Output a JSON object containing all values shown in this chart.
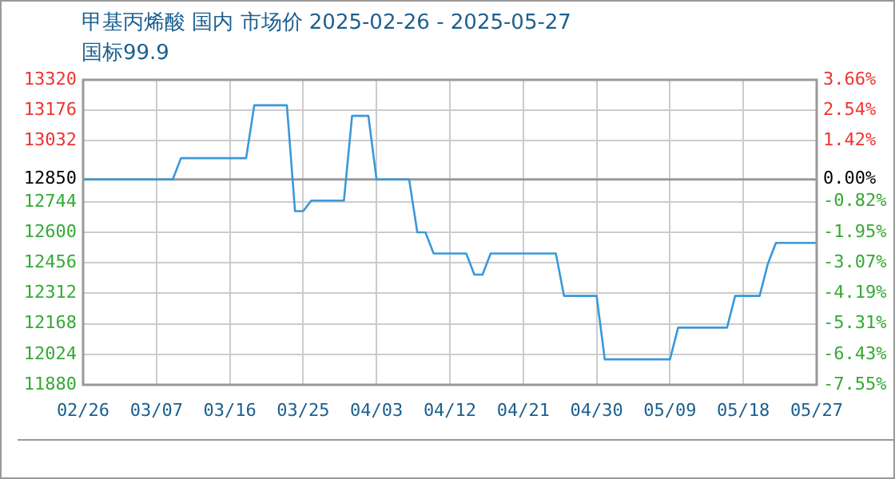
{
  "chart_data": {
    "type": "line",
    "title": "甲基丙烯酸 国内 市场价 2025-02-26 - 2025-05-27",
    "subtitle": "国标99.9",
    "series": [
      {
        "color": "#3a98d8",
        "x": [
          "2025-02-26",
          "2025-03-09",
          "2025-03-10",
          "2025-03-18",
          "2025-03-19",
          "2025-03-23",
          "2025-03-24",
          "2025-03-25",
          "2025-03-26",
          "2025-03-30",
          "2025-03-31",
          "2025-04-02",
          "2025-04-03",
          "2025-04-07",
          "2025-04-08",
          "2025-04-09",
          "2025-04-10",
          "2025-04-14",
          "2025-04-15",
          "2025-04-16",
          "2025-04-17",
          "2025-04-25",
          "2025-04-26",
          "2025-04-30",
          "2025-05-01",
          "2025-05-09",
          "2025-05-10",
          "2025-05-16",
          "2025-05-17",
          "2025-05-20",
          "2025-05-21",
          "2025-05-22",
          "2025-05-27"
        ],
        "values": [
          12850,
          12850,
          12950,
          12950,
          13200,
          13200,
          12700,
          12700,
          12750,
          12750,
          13150,
          13150,
          12850,
          12850,
          12600,
          12600,
          12500,
          12500,
          12400,
          12400,
          12500,
          12500,
          12300,
          12300,
          12000,
          12000,
          12150,
          12150,
          12300,
          12300,
          12450,
          12550,
          12550
        ]
      }
    ],
    "xlim": [
      "2025-02-26",
      "2025-05-27"
    ],
    "xticks": [
      {
        "value": "2025-02-26",
        "label": "02/26"
      },
      {
        "value": "2025-03-07",
        "label": "03/07"
      },
      {
        "value": "2025-03-16",
        "label": "03/16"
      },
      {
        "value": "2025-03-25",
        "label": "03/25"
      },
      {
        "value": "2025-04-03",
        "label": "04/03"
      },
      {
        "value": "2025-04-12",
        "label": "04/12"
      },
      {
        "value": "2025-04-21",
        "label": "04/21"
      },
      {
        "value": "2025-04-30",
        "label": "04/30"
      },
      {
        "value": "2025-05-09",
        "label": "05/09"
      },
      {
        "value": "2025-05-18",
        "label": "05/18"
      },
      {
        "value": "2025-05-27",
        "label": "05/27"
      }
    ],
    "ylim": [
      11880,
      13320
    ],
    "yticks": [
      11880,
      12024,
      12168,
      12312,
      12456,
      12600,
      12744,
      12850,
      13032,
      13176,
      13320
    ],
    "y2lim": [
      -7.55,
      3.66
    ],
    "y2ticks": [
      {
        "value": -7.55,
        "label": "-7.55%"
      },
      {
        "value": -6.43,
        "label": "-6.43%"
      },
      {
        "value": -5.31,
        "label": "-5.31%"
      },
      {
        "value": -4.19,
        "label": "-4.19%"
      },
      {
        "value": -3.07,
        "label": "-3.07%"
      },
      {
        "value": -1.95,
        "label": "-1.95%"
      },
      {
        "value": -0.82,
        "label": "-0.82%"
      },
      {
        "value": 0,
        "label": "0.00%"
      },
      {
        "value": 1.42,
        "label": "1.42%"
      },
      {
        "value": 2.54,
        "label": "2.54%"
      },
      {
        "value": 3.66,
        "label": "3.66%"
      }
    ],
    "ref_lines": [
      {
        "axis": "y",
        "value": 12850,
        "color": "#999999"
      }
    ],
    "grid": true,
    "legend": false,
    "marker": "none",
    "line_style": "solid"
  }
}
